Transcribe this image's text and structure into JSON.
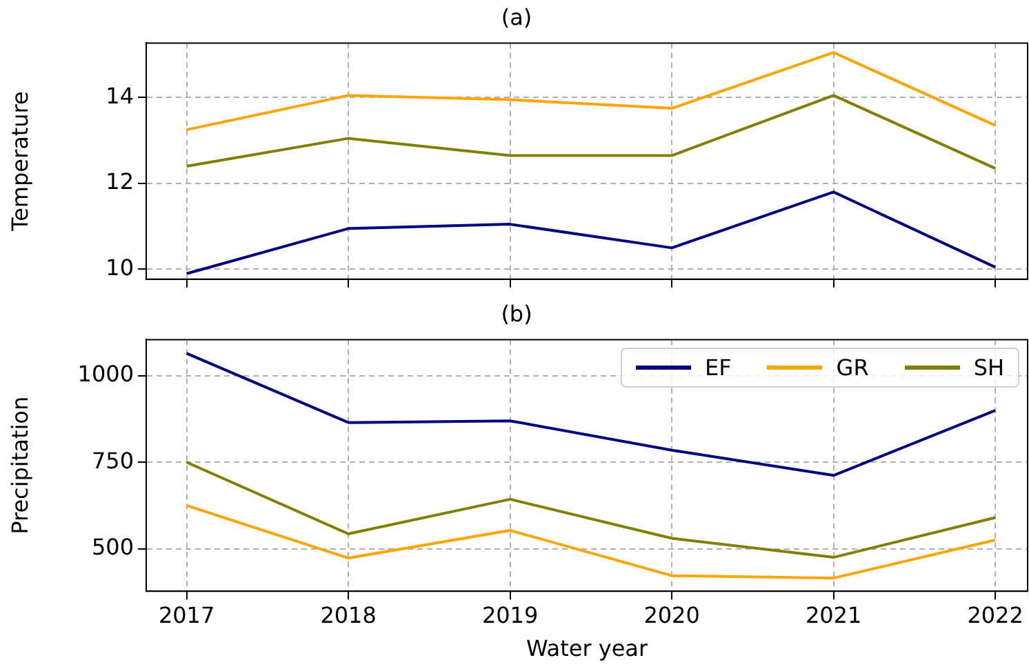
{
  "chart_data": [
    {
      "type": "line",
      "title": "(a)",
      "ylabel": "Temperature",
      "x": [
        2017,
        2018,
        2019,
        2020,
        2021,
        2022
      ],
      "xlim": [
        2016.75,
        2022.2
      ],
      "xticks": [
        2017,
        2018,
        2019,
        2020,
        2021,
        2022
      ],
      "ylim": [
        9.77,
        15.27
      ],
      "yticks": [
        10,
        12,
        14
      ],
      "tick_labels": "y",
      "grid": true,
      "series": [
        {
          "color": "#000080",
          "values": [
            9.9,
            10.95,
            11.05,
            10.5,
            11.8,
            10.05
          ]
        },
        {
          "color": "#ffa500",
          "values": [
            13.25,
            14.05,
            13.95,
            13.75,
            15.05,
            13.35
          ]
        },
        {
          "color": "#808000",
          "values": [
            12.4,
            13.05,
            12.65,
            12.65,
            14.05,
            12.35
          ]
        }
      ]
    },
    {
      "type": "line",
      "title": "(b)",
      "xlabel": "Water year",
      "ylabel": "Precipitation",
      "x": [
        2017,
        2018,
        2019,
        2020,
        2021,
        2022
      ],
      "xlim": [
        2016.75,
        2022.2
      ],
      "xticks": [
        2017,
        2018,
        2019,
        2020,
        2021,
        2022
      ],
      "ylim": [
        377,
        1105
      ],
      "yticks": [
        500,
        750,
        1000
      ],
      "grid": true,
      "legend": "top right",
      "series": [
        {
          "name": "EF",
          "color": "#000080",
          "values": [
            1065,
            865,
            870,
            785,
            712,
            900
          ]
        },
        {
          "name": "GR",
          "color": "#ffa500",
          "values": [
            625,
            473,
            553,
            422,
            415,
            525
          ]
        },
        {
          "name": "SH",
          "color": "#808000",
          "values": [
            750,
            543,
            643,
            530,
            475,
            590
          ]
        }
      ]
    }
  ]
}
